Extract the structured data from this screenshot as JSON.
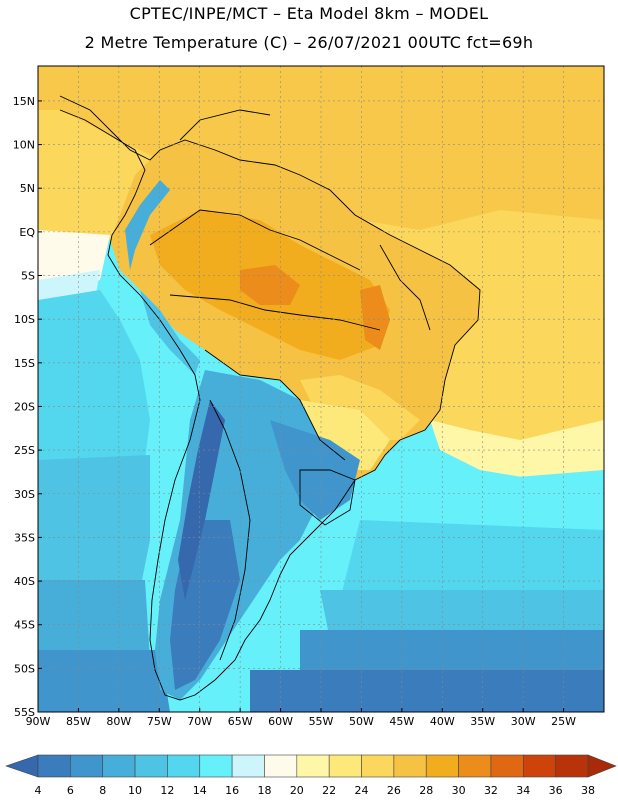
{
  "header": {
    "title_line1": "CPTEC/INPE/MCT –  Eta Model 8km – MODEL",
    "title_line2": "2 Metre Temperature (C) – 26/07/2021 00UTC fct=69h"
  },
  "map": {
    "lon_range": [
      -90,
      -20
    ],
    "lat_range": [
      -55,
      19
    ],
    "lat_labels": [
      "15N",
      "10N",
      "5N",
      "EQ",
      "5S",
      "10S",
      "15S",
      "20S",
      "25S",
      "30S",
      "35S",
      "40S",
      "45S",
      "50S",
      "55S"
    ],
    "lon_labels": [
      "90W",
      "85W",
      "80W",
      "75W",
      "70W",
      "65W",
      "60W",
      "55W",
      "50W",
      "45W",
      "40W",
      "35W",
      "30W",
      "25W"
    ],
    "grid": true
  },
  "colorbar": {
    "ticks": [
      "4",
      "6",
      "8",
      "10",
      "12",
      "14",
      "16",
      "18",
      "20",
      "22",
      "24",
      "26",
      "28",
      "30",
      "32",
      "34",
      "36",
      "38"
    ],
    "colors": [
      "#3568ac",
      "#3a7cbc",
      "#3f95cc",
      "#47aed9",
      "#4ec3e3",
      "#52d7ee",
      "#66f0fa",
      "#ccf5fc",
      "#fffbea",
      "#fff7a8",
      "#fde97a",
      "#fbd75c",
      "#f6c243",
      "#f2ad1e",
      "#eb8c1b",
      "#e06812",
      "#cd4309",
      "#b8330a",
      "#a82a08"
    ]
  }
}
